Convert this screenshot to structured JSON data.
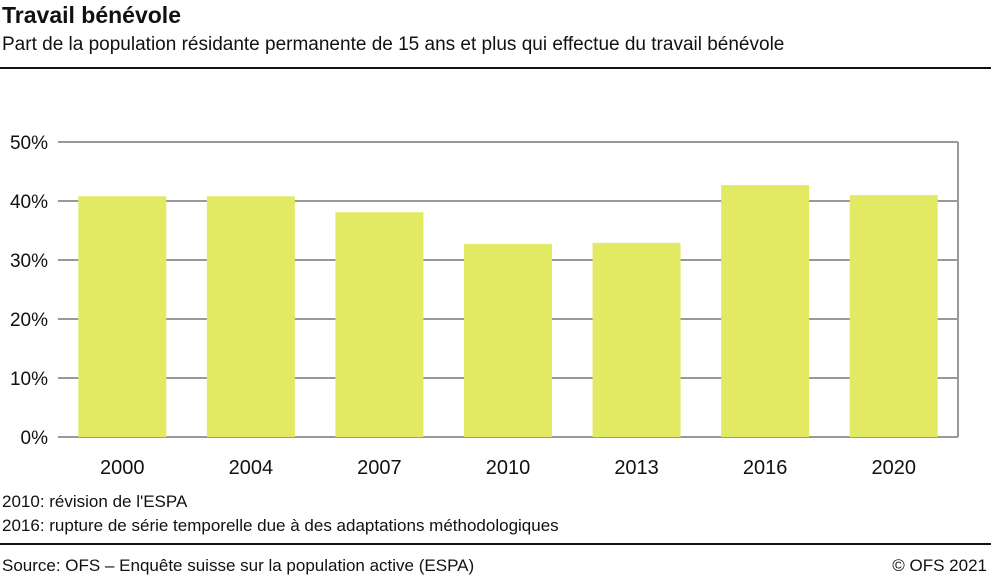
{
  "title": "Travail bénévole",
  "subtitle": "Part de la population résidante permanente de 15 ans et plus qui effectue du travail bénévole",
  "notes": [
    "2010: révision de l'ESPA",
    "2016: rupture de série temporelle due à des adaptations méthodologiques"
  ],
  "source": "Source: OFS – Enquête suisse sur la population active (ESPA)",
  "copyright": "© OFS 2021",
  "chart_data": {
    "type": "bar",
    "categories": [
      "2000",
      "2004",
      "2007",
      "2010",
      "2013",
      "2016",
      "2020"
    ],
    "values": [
      40.8,
      40.8,
      38.1,
      32.7,
      32.9,
      42.7,
      41.0
    ],
    "ylim": [
      0,
      50
    ],
    "yticks": [
      "0%",
      "10%",
      "20%",
      "30%",
      "40%",
      "50%"
    ],
    "grid": true,
    "colors": {
      "bar": "#e1ea62",
      "grid": "#999999"
    }
  }
}
